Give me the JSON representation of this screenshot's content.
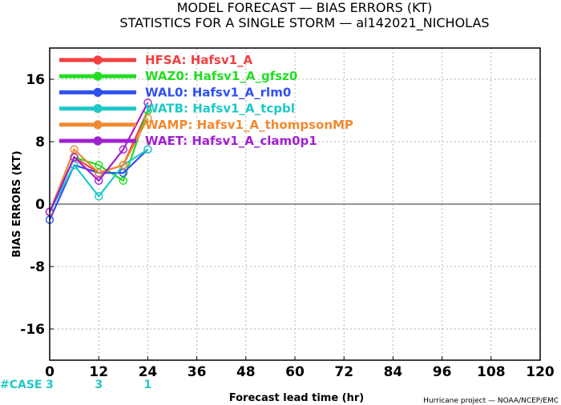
{
  "title_line1": "MODEL FORECAST — BIAS ERRORS (KT)",
  "title_line2": "STATISTICS FOR A SINGLE STORM — al142021_NICHOLAS",
  "credit": "Hurricane project — NOAA/NCEP/EMC",
  "cases_label": "#CASE",
  "chart_data": {
    "type": "line",
    "xlabel": "Forecast lead time (hr)",
    "ylabel": "BIAS ERRORS (KT)",
    "xlim": [
      0,
      120
    ],
    "ylim": [
      -20,
      20
    ],
    "xticks": [
      0,
      12,
      24,
      36,
      48,
      60,
      72,
      84,
      96,
      108,
      120
    ],
    "yticks": [
      -16,
      -8,
      0,
      8,
      16
    ],
    "grid": true,
    "legend_position": "top-left",
    "x": [
      0,
      6,
      12,
      18,
      24
    ],
    "cases": [
      {
        "x": 0,
        "label": "3"
      },
      {
        "x": 12,
        "label": "3"
      },
      {
        "x": 24,
        "label": "1"
      }
    ],
    "series": [
      {
        "name": "HFSA:  Hafsv1_A",
        "color": "#f04040",
        "values": [
          -1,
          6,
          4,
          5,
          12
        ]
      },
      {
        "name": "WAZ0:  Hafsv1_A_gfsz0",
        "color": "#22dd22",
        "values": [
          -1,
          6,
          5,
          3,
          12
        ]
      },
      {
        "name": "WAL0:  Hafsv1_A_rlm0",
        "color": "#3050f0",
        "values": [
          -2,
          5,
          4,
          4,
          7
        ]
      },
      {
        "name": "WATB:  Hafsv1_A_tcpbl",
        "color": "#1fc8c8",
        "values": [
          -1,
          5,
          1,
          5,
          7
        ]
      },
      {
        "name": "WAMP:  Hafsv1_A_thompsonMP",
        "color": "#f08a30",
        "values": [
          -1,
          7,
          4,
          5,
          11
        ]
      },
      {
        "name": "WAET:  Hafsv1_A_clam0p1",
        "color": "#a020d0",
        "values": [
          -1,
          6,
          3,
          7,
          13
        ]
      }
    ]
  }
}
